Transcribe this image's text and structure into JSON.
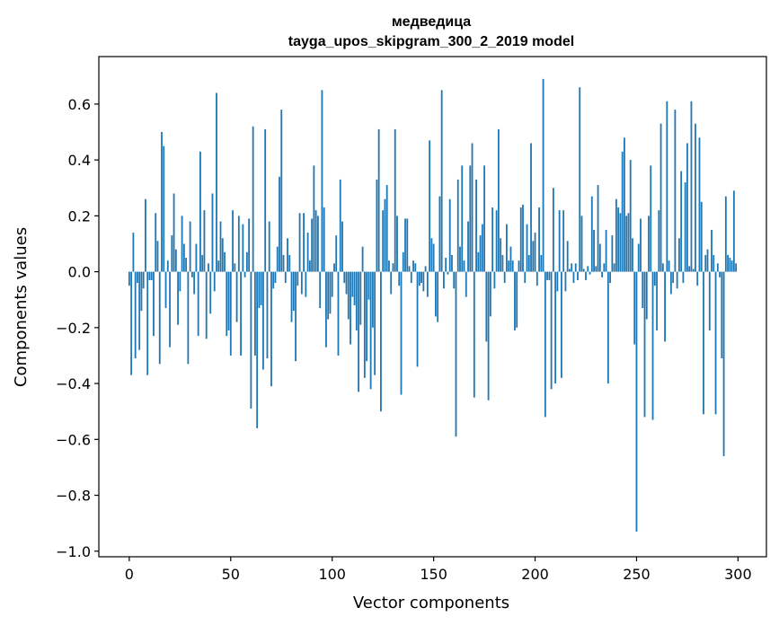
{
  "chart_data": {
    "type": "bar",
    "title": "медведица",
    "subtitle": "tayga_upos_skipgram_300_2_2019 model",
    "xlabel": "Vector components",
    "ylabel": "Components values",
    "xlim": [
      -15,
      314
    ],
    "ylim": [
      -1.02,
      0.77
    ],
    "xticks": [
      0,
      50,
      100,
      150,
      200,
      250,
      300
    ],
    "yticks": [
      -1.0,
      -0.8,
      -0.6,
      -0.4,
      -0.2,
      0.0,
      0.2,
      0.4,
      0.6
    ],
    "ytick_labels": [
      "−1.0",
      "−0.8",
      "−0.6",
      "−0.4",
      "−0.2",
      "0.0",
      "0.2",
      "0.4",
      "0.6"
    ],
    "bar_color": "#1f77b4",
    "grid": false,
    "values": [
      -0.05,
      -0.37,
      0.14,
      -0.31,
      -0.04,
      -0.28,
      -0.14,
      -0.06,
      0.26,
      -0.37,
      -0.03,
      -0.03,
      -0.23,
      0.21,
      0.11,
      -0.33,
      0.5,
      0.45,
      -0.13,
      0.04,
      -0.27,
      0.13,
      0.28,
      0.08,
      -0.19,
      -0.07,
      0.2,
      0.1,
      0.05,
      -0.33,
      0.18,
      -0.02,
      -0.08,
      0.1,
      -0.23,
      0.43,
      0.06,
      0.22,
      -0.24,
      0.03,
      -0.15,
      0.28,
      -0.07,
      0.64,
      0.04,
      0.18,
      0.12,
      0.07,
      -0.23,
      -0.21,
      -0.3,
      0.22,
      0.03,
      -0.18,
      0.2,
      -0.3,
      0.17,
      -0.02,
      0.07,
      0.19,
      -0.49,
      0.52,
      -0.3,
      -0.56,
      -0.13,
      -0.12,
      -0.35,
      0.51,
      -0.31,
      0.18,
      -0.41,
      -0.06,
      -0.04,
      0.09,
      0.34,
      0.58,
      0.06,
      -0.04,
      0.12,
      0.06,
      -0.18,
      -0.14,
      -0.32,
      -0.05,
      0.21,
      -0.08,
      0.21,
      -0.09,
      0.14,
      0.04,
      0.19,
      0.38,
      0.22,
      0.2,
      -0.13,
      0.65,
      0.23,
      -0.27,
      -0.17,
      -0.15,
      -0.09,
      0.03,
      0.13,
      -0.3,
      0.33,
      0.18,
      -0.04,
      -0.08,
      -0.17,
      -0.26,
      -0.09,
      -0.12,
      -0.21,
      -0.43,
      -0.19,
      0.09,
      -0.38,
      -0.32,
      -0.1,
      -0.42,
      -0.2,
      -0.37,
      0.33,
      0.51,
      -0.5,
      0.22,
      0.26,
      0.31,
      0.04,
      -0.08,
      0.03,
      0.51,
      0.2,
      -0.05,
      -0.44,
      0.07,
      0.19,
      0.19,
      0.02,
      -0.04,
      0.04,
      0.03,
      -0.34,
      -0.05,
      -0.04,
      -0.07,
      0.02,
      -0.09,
      0.47,
      0.12,
      0.1,
      -0.16,
      -0.18,
      0.27,
      0.65,
      -0.06,
      0.05,
      -0.01,
      0.26,
      0.06,
      -0.06,
      -0.59,
      0.33,
      0.09,
      0.38,
      0.04,
      -0.09,
      0.18,
      0.38,
      0.46,
      -0.45,
      0.33,
      0.07,
      0.13,
      0.17,
      0.38,
      -0.25,
      -0.46,
      -0.16,
      0.23,
      -0.06,
      0.22,
      0.51,
      0.12,
      0.06,
      -0.04,
      0.17,
      0.04,
      0.09,
      0.04,
      -0.21,
      -0.2,
      0.04,
      0.23,
      0.24,
      -0.04,
      0.17,
      0.06,
      0.46,
      0.11,
      0.14,
      -0.05,
      0.23,
      0.06,
      0.69,
      -0.52,
      -0.03,
      -0.03,
      -0.42,
      0.3,
      -0.4,
      -0.07,
      0.22,
      -0.38,
      0.22,
      -0.07,
      0.11,
      0.01,
      0.03,
      -0.04,
      0.03,
      -0.03,
      0.66,
      0.2,
      0.01,
      -0.03,
      0.02,
      -0.01,
      0.27,
      0.15,
      0.02,
      0.31,
      0.1,
      -0.02,
      0.03,
      0.15,
      -0.4,
      -0.04,
      0.13,
      0.03,
      0.26,
      0.23,
      0.21,
      0.43,
      0.48,
      0.2,
      0.21,
      0.4,
      0.12,
      -0.26,
      -0.93,
      0.1,
      0.19,
      -0.13,
      -0.52,
      -0.17,
      0.2,
      0.38,
      -0.53,
      -0.05,
      -0.21,
      0.22,
      0.53,
      0.03,
      -0.25,
      0.61,
      0.04,
      -0.08,
      -0.04,
      0.58,
      -0.06,
      0.12,
      0.36,
      -0.04,
      0.32,
      0.46,
      0.02,
      0.61,
      0.01,
      0.53,
      -0.05,
      0.48,
      0.25,
      -0.51,
      0.06,
      0.08,
      -0.21,
      0.15,
      0.06,
      -0.51,
      0.03,
      -0.02,
      -0.31,
      -0.66,
      0.27,
      0.06,
      0.05,
      0.04,
      0.29,
      0.03
    ]
  }
}
